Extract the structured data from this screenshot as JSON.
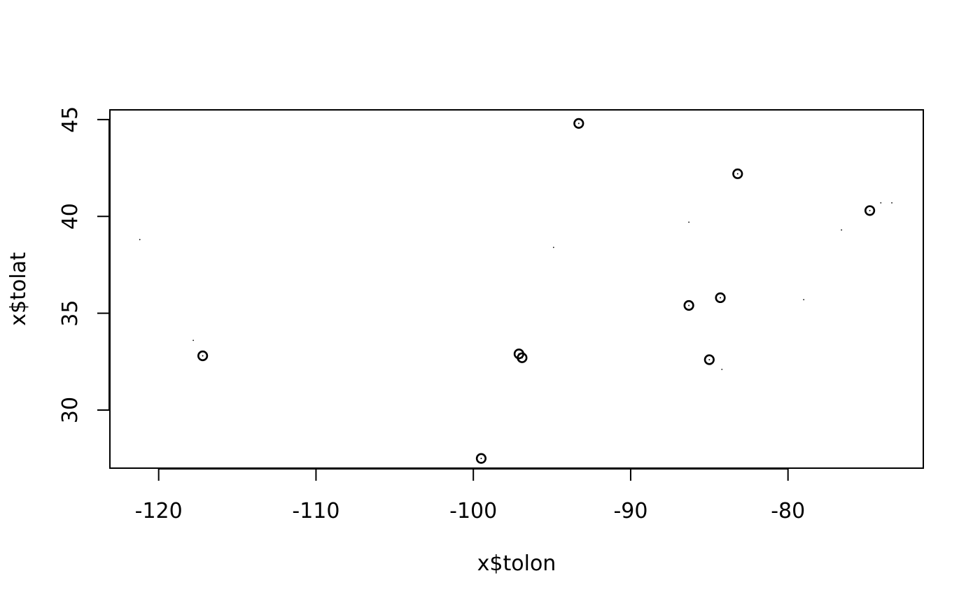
{
  "chart_data": {
    "type": "scatter",
    "title": "",
    "xlabel": "x$tolon",
    "ylabel": "x$tolat",
    "xlim": [
      -123.1,
      -71.4
    ],
    "ylim": [
      27.0,
      45.5
    ],
    "x_ticks": [
      -120,
      -110,
      -100,
      -90,
      -80
    ],
    "x_tick_labels": [
      "-120",
      "-110",
      "-100",
      "-90",
      "-80"
    ],
    "y_ticks": [
      30,
      35,
      40,
      45
    ],
    "y_tick_labels": [
      "30",
      "35",
      "40",
      "45"
    ],
    "grid": false,
    "legend": "none",
    "series": [
      {
        "marker": "open-circle",
        "x": [
          -117.2,
          -99.5,
          -97.1,
          -96.9,
          -93.3,
          -86.3,
          -85.0,
          -84.3,
          -83.2,
          -74.8
        ],
        "y": [
          32.8,
          27.5,
          32.9,
          32.7,
          44.8,
          35.4,
          32.6,
          35.8,
          42.2,
          40.3
        ]
      },
      {
        "marker": "tiny-dot",
        "x": [
          -121.2,
          -117.8,
          -94.9,
          -86.3,
          -84.2,
          -79.0,
          -76.6,
          -74.1,
          -73.4
        ],
        "y": [
          38.8,
          33.6,
          38.4,
          39.7,
          32.1,
          35.7,
          39.3,
          40.7,
          40.7
        ]
      }
    ]
  }
}
